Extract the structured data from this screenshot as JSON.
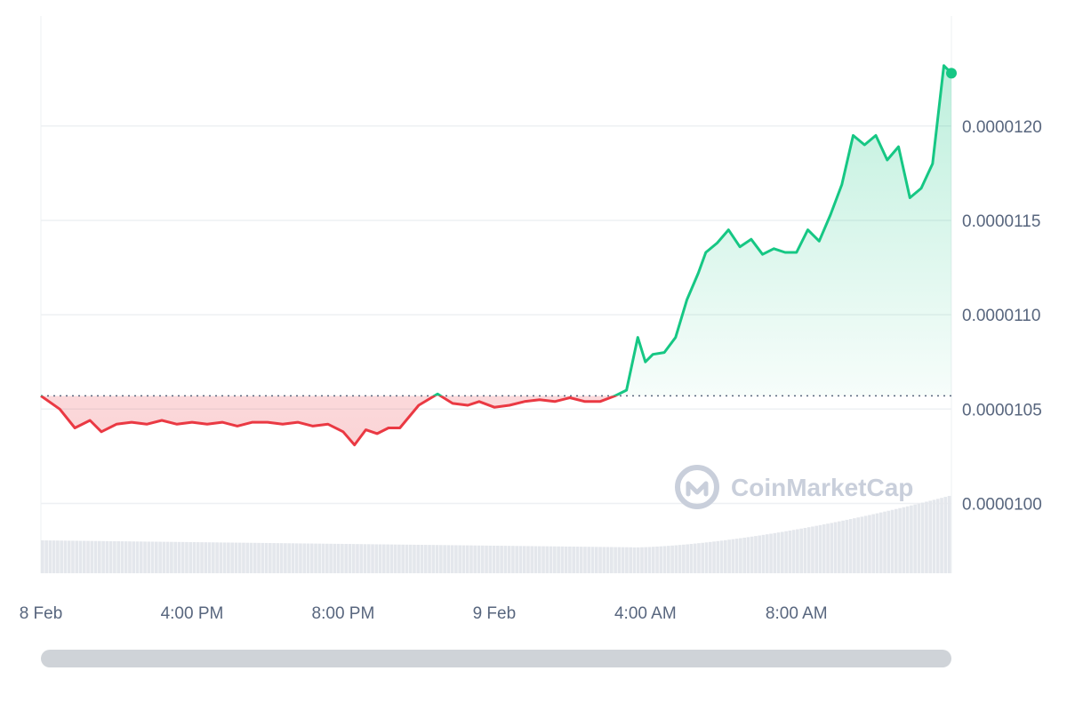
{
  "colors": {
    "up": "#16c784",
    "down": "#ea3943",
    "grid": "#eef0f3",
    "volume": "#e4e7ec",
    "axis_text": "#58667e",
    "watermark": "#c9cfdb",
    "scrollbar": "#cfd3d8"
  },
  "watermark": {
    "text": "CoinMarketCap",
    "icon": "coinmarketcap-logo-icon"
  },
  "chart_data": {
    "type": "line",
    "title": "",
    "xlabel": "",
    "ylabel": "",
    "y_axis_position": "right",
    "ylim": [
      9.63e-06,
      1.247e-05
    ],
    "yticks": [
      1e-05,
      1.05e-05,
      1.1e-05,
      1.15e-05,
      1.2e-05
    ],
    "ytick_labels": [
      "0.0000100",
      "0.0000105",
      "0.0000110",
      "0.0000115",
      "0.0000120"
    ],
    "xlim_hours": [
      12,
      36.1
    ],
    "xticks": [
      12,
      16,
      20,
      24,
      28,
      32
    ],
    "xtick_labels": [
      "8 Feb",
      "4:00 PM",
      "8:00 PM",
      "9 Feb",
      "4:00 AM",
      "8:00 AM"
    ],
    "baseline": 1.057e-05,
    "grid": "horizontal",
    "series": [
      {
        "x": [
          12.0,
          12.5,
          12.9,
          13.3,
          13.6,
          14.0,
          14.4,
          14.8,
          15.2,
          15.6,
          16.0,
          16.4,
          16.8,
          17.2,
          17.6,
          18.0,
          18.4,
          18.8,
          19.2,
          19.6,
          20.0,
          20.3,
          20.6,
          20.9,
          21.2,
          21.5,
          22.0,
          22.5,
          22.9,
          23.3,
          23.6,
          24.0,
          24.4,
          24.8,
          25.2,
          25.6,
          26.0,
          26.4,
          26.8,
          27.2,
          27.5,
          27.8,
          28.0,
          28.2,
          28.5,
          28.8,
          29.1,
          29.4,
          29.6,
          29.9,
          30.2,
          30.5,
          30.8,
          31.1,
          31.4,
          31.7,
          32.0,
          32.3,
          32.6,
          32.9,
          33.2,
          33.5,
          33.8,
          34.1,
          34.4,
          34.7,
          35.0,
          35.3,
          35.6,
          35.9,
          36.1
        ],
        "y": [
          1.057e-05,
          1.05e-05,
          1.04e-05,
          1.044e-05,
          1.038e-05,
          1.042e-05,
          1.043e-05,
          1.042e-05,
          1.044e-05,
          1.042e-05,
          1.043e-05,
          1.042e-05,
          1.043e-05,
          1.041e-05,
          1.043e-05,
          1.043e-05,
          1.042e-05,
          1.043e-05,
          1.041e-05,
          1.042e-05,
          1.038e-05,
          1.031e-05,
          1.039e-05,
          1.037e-05,
          1.04e-05,
          1.04e-05,
          1.052e-05,
          1.058e-05,
          1.053e-05,
          1.052e-05,
          1.054e-05,
          1.051e-05,
          1.052e-05,
          1.054e-05,
          1.055e-05,
          1.054e-05,
          1.056e-05,
          1.054e-05,
          1.054e-05,
          1.057e-05,
          1.06e-05,
          1.088e-05,
          1.075e-05,
          1.079e-05,
          1.08e-05,
          1.088e-05,
          1.108e-05,
          1.122e-05,
          1.133e-05,
          1.138e-05,
          1.145e-05,
          1.136e-05,
          1.14e-05,
          1.132e-05,
          1.135e-05,
          1.133e-05,
          1.133e-05,
          1.145e-05,
          1.139e-05,
          1.153e-05,
          1.169e-05,
          1.195e-05,
          1.19e-05,
          1.195e-05,
          1.182e-05,
          1.189e-05,
          1.162e-05,
          1.167e-05,
          1.18e-05,
          1.232e-05,
          1.228e-05
        ]
      }
    ],
    "volume_hint": "rising"
  }
}
